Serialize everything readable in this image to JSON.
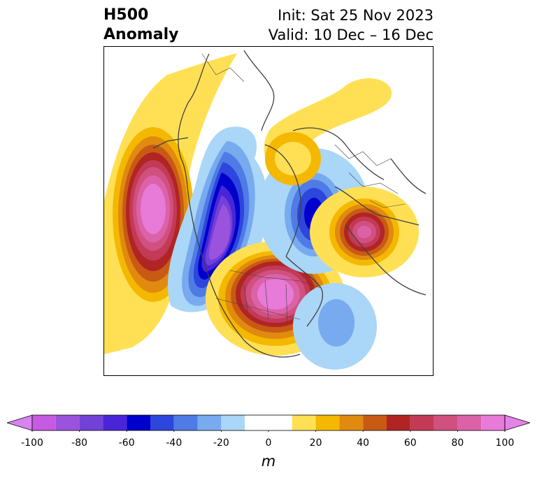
{
  "title": {
    "left_line1": "H500",
    "left_line2": "Anomaly",
    "right_line1": "Init: Sat 25 Nov 2023",
    "right_line2": "Valid: 10 Dec – 16 Dec"
  },
  "map": {
    "projection": "polar-stereographic",
    "region": "North America / North Atlantic / Europe",
    "features": [
      {
        "name": "North Pacific positive anomaly (ridge)",
        "sign": "positive",
        "peak_m": 100
      },
      {
        "name": "Gulf of Alaska / western Canada negative anomaly (trough)",
        "sign": "negative",
        "peak_m": -100
      },
      {
        "name": "Eastern Canada / Great Lakes positive anomaly",
        "sign": "positive",
        "peak_m": 100
      },
      {
        "name": "Greenland / northern Atlantic negative anomaly",
        "sign": "negative",
        "peak_m": -60
      },
      {
        "name": "Central Europe positive anomaly",
        "sign": "positive",
        "peak_m": 90
      },
      {
        "name": "Subtropical western Atlantic negative anomaly",
        "sign": "negative",
        "peak_m": -30
      },
      {
        "name": "Arctic / Siberia weak positive anomaly",
        "sign": "positive",
        "peak_m": 20
      }
    ]
  },
  "colorbar": {
    "unit": "m",
    "ticks": [
      "-100",
      "-80",
      "-60",
      "-40",
      "-20",
      "0",
      "20",
      "40",
      "60",
      "80",
      "100"
    ],
    "tick_values": [
      -100,
      -80,
      -60,
      -40,
      -20,
      0,
      20,
      40,
      60,
      80,
      100
    ],
    "levels": [
      -100,
      -90,
      -80,
      -70,
      -60,
      -50,
      -40,
      -30,
      -20,
      -10,
      10,
      20,
      30,
      40,
      50,
      60,
      70,
      80,
      90,
      100
    ],
    "colors": [
      "#c45be0",
      "#9b52dd",
      "#7141d8",
      "#4a25d8",
      "#0000cc",
      "#2d46dc",
      "#4f7be6",
      "#78aaef",
      "#aad6f7",
      "#ffffff",
      "#ffe055",
      "#f5b800",
      "#e08a10",
      "#c85a14",
      "#b02424",
      "#c23a55",
      "#d05080",
      "#dc62a8",
      "#e87ad8"
    ],
    "under_color": "#d884f0",
    "over_color": "#e483e8"
  }
}
